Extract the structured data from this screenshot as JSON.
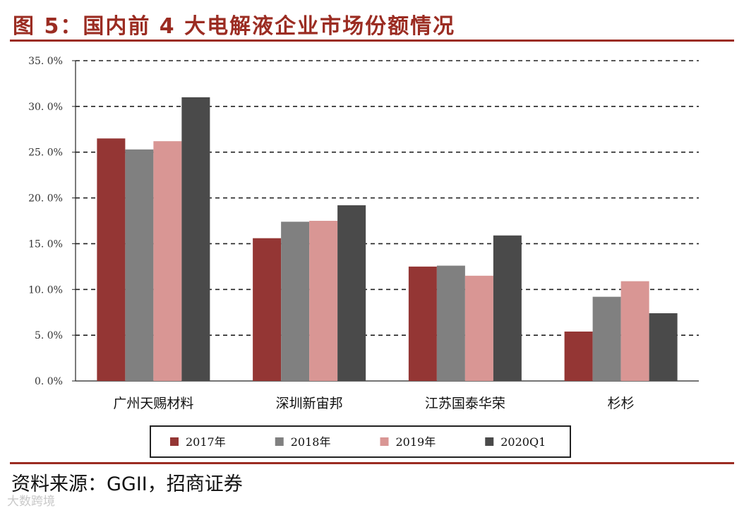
{
  "title": "图 5：国内前 4 大电解液企业市场份额情况",
  "source": "资料来源：GGII，招商证券",
  "watermark": "大数跨境",
  "colors": {
    "accent": "#9b2c22",
    "series": [
      "#943634",
      "#808080",
      "#d99694",
      "#4a4a4a"
    ]
  },
  "chart_data": {
    "type": "bar",
    "categories": [
      "广州天赐材料",
      "深圳新宙邦",
      "江苏国泰华荣",
      "杉杉"
    ],
    "series": [
      {
        "name": "2017年",
        "values": [
          26.5,
          15.6,
          12.5,
          5.4
        ]
      },
      {
        "name": "2018年",
        "values": [
          25.3,
          17.4,
          12.6,
          9.2
        ]
      },
      {
        "name": "2019年",
        "values": [
          26.2,
          17.5,
          11.5,
          10.9
        ]
      },
      {
        "name": "2020Q1",
        "values": [
          31.0,
          19.2,
          15.9,
          7.4
        ]
      }
    ],
    "yticks": [
      "0.0%",
      "5.0%",
      "10.0%",
      "15.0%",
      "20.0%",
      "25.0%",
      "30.0%",
      "35.0%"
    ],
    "ylim": [
      0,
      35
    ],
    "grid": true,
    "gridStyle": "dashed",
    "legend": "bottom"
  }
}
